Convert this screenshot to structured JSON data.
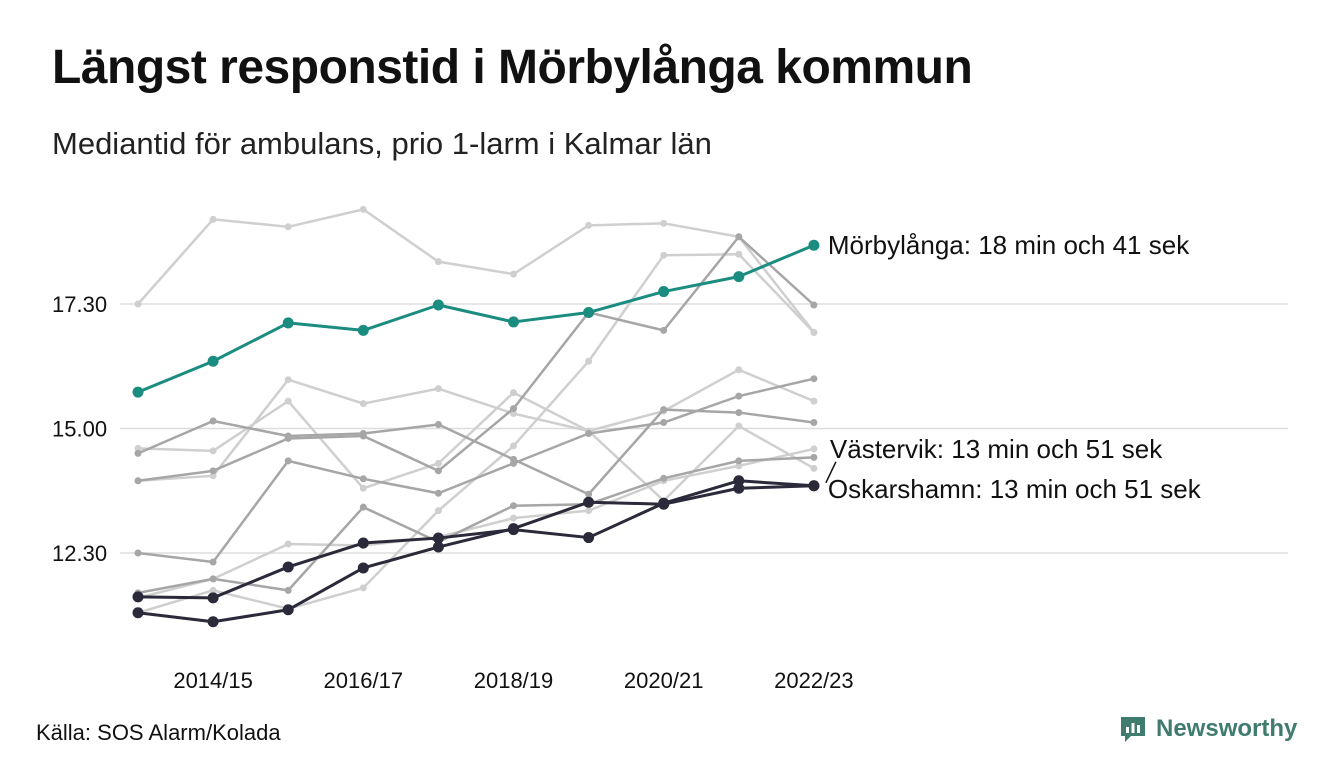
{
  "title": "Längst responstid i Mörbylånga kommun",
  "subtitle": "Mediantid för ambulans, prio 1-larm i Kalmar län",
  "source": "Källa: SOS Alarm/Kolada",
  "brand": "Newsworthy",
  "chart_data": {
    "type": "line",
    "title": "Längst responstid i Mörbylånga kommun",
    "subtitle": "Mediantid för ambulans, prio 1-larm i Kalmar län",
    "x": [
      "2013/14",
      "2014/15",
      "2015/16",
      "2016/17",
      "2017/18",
      "2018/19",
      "2019/20",
      "2020/21",
      "2021/22",
      "2022/23"
    ],
    "x_tick_labels": [
      "2014/15",
      "2016/17",
      "2018/19",
      "2020/21",
      "2022/23"
    ],
    "y_unit": "minutes",
    "y_tick_values": [
      12.5,
      15.0,
      17.5
    ],
    "y_tick_labels": [
      "12.30",
      "15.00",
      "17.30"
    ],
    "ylim": [
      11.0,
      20.0
    ],
    "grid": true,
    "colors": {
      "highlight": "#1a8c80",
      "dark": "#2a2a3a",
      "grey_dark": "#a6a6a6",
      "grey_light": "#cfcfcf",
      "grid": "#dddddd"
    },
    "highlighted": [
      {
        "name": "Mörbylånga",
        "label": "Mörbylånga: 18 min och 41 sek",
        "color": "#1a8c80",
        "values": [
          15.73,
          16.35,
          17.12,
          16.97,
          17.48,
          17.14,
          17.33,
          17.75,
          18.05,
          18.68
        ]
      },
      {
        "name": "Västervik",
        "label": "Västervik: 13 min och 51 sek",
        "color": "#2a2a3a",
        "values": [
          11.62,
          11.6,
          12.22,
          12.7,
          12.8,
          12.97,
          12.81,
          13.5,
          13.95,
          13.85
        ]
      },
      {
        "name": "Oskarshamn",
        "label": "Oskarshamn: 13 min och 51 sek",
        "color": "#2a2a3a",
        "values": [
          11.3,
          11.12,
          11.36,
          12.2,
          12.62,
          12.99,
          13.52,
          13.48,
          13.8,
          13.85
        ]
      }
    ],
    "other_series": [
      {
        "color": "#cfcfcf",
        "values": [
          17.5,
          19.2,
          19.05,
          19.4,
          18.35,
          18.1,
          19.08,
          19.12,
          18.85,
          16.93
        ]
      },
      {
        "color": "#cfcfcf",
        "values": [
          13.95,
          14.05,
          15.98,
          15.5,
          15.8,
          15.3,
          14.95,
          15.35,
          16.18,
          15.55
        ]
      },
      {
        "color": "#cfcfcf",
        "values": [
          14.6,
          14.55,
          15.55,
          13.8,
          14.3,
          15.72,
          14.95,
          13.55,
          15.05,
          14.2
        ]
      },
      {
        "color": "#cfcfcf",
        "values": [
          11.6,
          11.98,
          12.68,
          12.65,
          12.82,
          13.2,
          13.35,
          13.95,
          14.25,
          14.59
        ]
      },
      {
        "color": "#cfcfcf",
        "values": [
          11.3,
          11.75,
          11.38,
          11.8,
          13.35,
          14.65,
          16.35,
          18.48,
          18.5,
          16.93
        ]
      },
      {
        "color": "#a6a6a6",
        "values": [
          12.5,
          12.32,
          14.35,
          13.99,
          13.7,
          14.3,
          14.9,
          15.12,
          15.65,
          16.0
        ]
      },
      {
        "color": "#a6a6a6",
        "values": [
          14.5,
          15.15,
          14.85,
          14.9,
          15.08,
          14.38,
          13.68,
          15.38,
          15.32,
          15.12
        ]
      },
      {
        "color": "#a6a6a6",
        "values": [
          11.7,
          11.98,
          11.75,
          13.42,
          12.72,
          13.45,
          13.48,
          14.0,
          14.35,
          14.42
        ]
      },
      {
        "color": "#a6a6a6",
        "values": [
          13.95,
          14.15,
          14.8,
          14.85,
          14.15,
          15.4,
          17.33,
          16.97,
          18.85,
          17.48
        ]
      }
    ]
  }
}
